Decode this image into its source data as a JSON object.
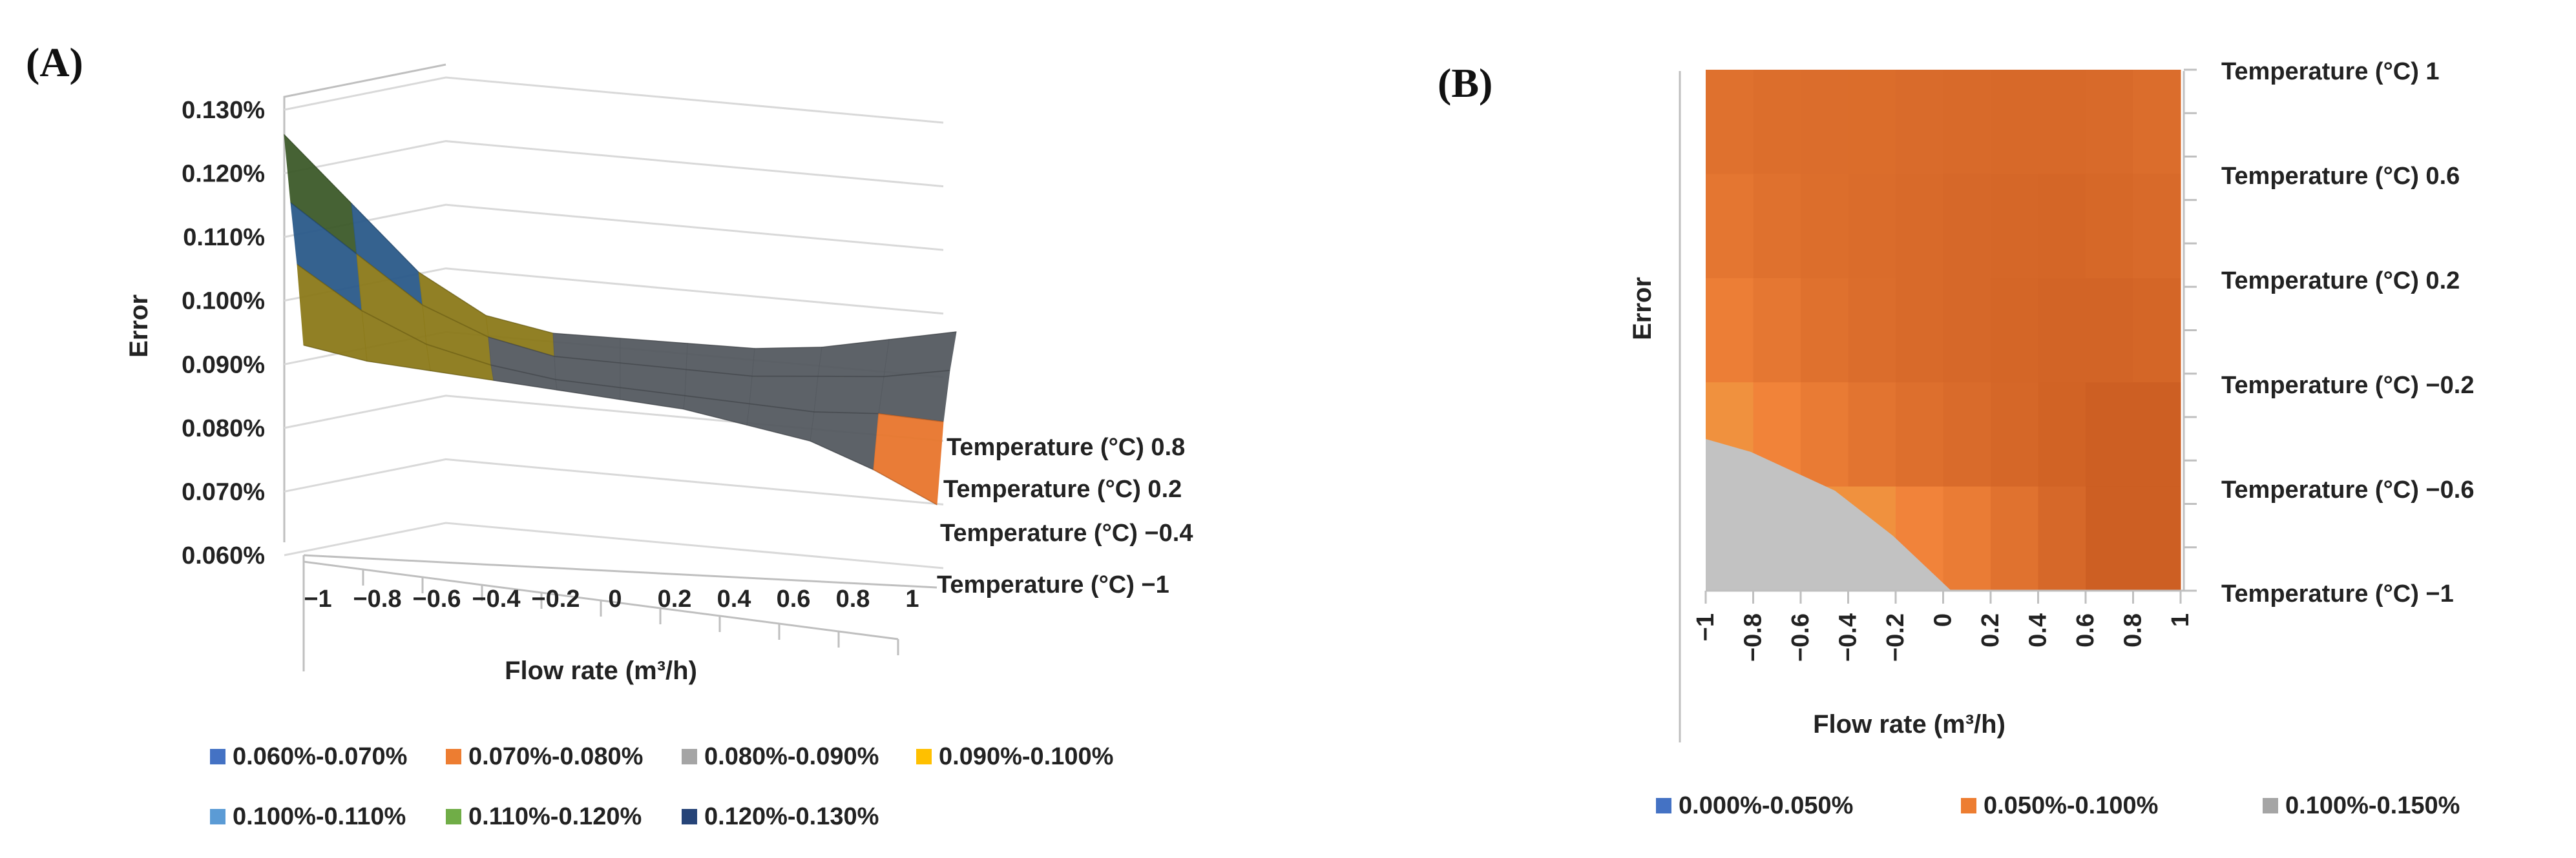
{
  "panel_a": {
    "label": "(A)",
    "ylabel": "Error",
    "xlabel": "Flow rate (m³/h)",
    "yticks": [
      "0.060%",
      "0.070%",
      "0.080%",
      "0.090%",
      "0.100%",
      "0.110%",
      "0.120%",
      "0.130%"
    ],
    "xticks": [
      "−1",
      "−0.8",
      "−0.6",
      "−0.4",
      "−0.2",
      "0",
      "0.2",
      "0.4",
      "0.6",
      "0.8",
      "1"
    ],
    "depth_ticks": [
      "Temperature (°C) 0.8",
      "Temperature (°C) 0.2",
      "Temperature (°C) −0.4",
      "Temperature (°C) −1"
    ],
    "legend": [
      {
        "label": "0.060%-0.070%",
        "color": "#4472c4"
      },
      {
        "label": "0.070%-0.080%",
        "color": "#ed7d31"
      },
      {
        "label": "0.080%-0.090%",
        "color": "#a5a5a5"
      },
      {
        "label": "0.090%-0.100%",
        "color": "#ffc000"
      },
      {
        "label": "0.100%-0.110%",
        "color": "#5b9bd5"
      },
      {
        "label": "0.110%-0.120%",
        "color": "#70ad47"
      },
      {
        "label": "0.120%-0.130%",
        "color": "#264478"
      }
    ]
  },
  "panel_b": {
    "label": "(B)",
    "ylabel": "Error",
    "xlabel": "Flow rate (m³/h)",
    "xticks": [
      "−1",
      "−0.8",
      "−0.6",
      "−0.4",
      "−0.2",
      "0",
      "0.2",
      "0.4",
      "0.6",
      "0.8",
      "1"
    ],
    "right_ticks": [
      "Temperature (°C) 1",
      "Temperature (°C) 0.6",
      "Temperature (°C) 0.2",
      "Temperature (°C) −0.2",
      "Temperature (°C) −0.6",
      "Temperature (°C) −1"
    ],
    "legend": [
      {
        "label": "0.000%-0.050%",
        "color": "#4472c4"
      },
      {
        "label": "0.050%-0.100%",
        "color": "#ed7d31"
      },
      {
        "label": "0.100%-0.150%",
        "color": "#a5a5a5"
      }
    ]
  },
  "chart_data": [
    {
      "type": "surface-3d",
      "title": "",
      "xlabel": "Flow rate (m³/h)",
      "ylabel": "Error",
      "zlabel": "Temperature (°C)",
      "x": [
        -1,
        -0.8,
        -0.6,
        -0.4,
        -0.2,
        0,
        0.2,
        0.4,
        0.6,
        0.8,
        1
      ],
      "ylim": [
        0.06,
        0.13
      ],
      "series": [
        {
          "name": "Temperature (°C) 0.8",
          "values": [
            0.121,
            0.11,
            0.099,
            0.092,
            0.089,
            0.088,
            0.087,
            0.086,
            0.086,
            0.087,
            0.088
          ]
        },
        {
          "name": "Temperature (°C) 0.2",
          "values": [
            0.112,
            0.104,
            0.096,
            0.091,
            0.088,
            0.087,
            0.086,
            0.085,
            0.085,
            0.085,
            0.086
          ]
        },
        {
          "name": "Temperature (°C) −0.4",
          "values": [
            0.104,
            0.097,
            0.092,
            0.089,
            0.087,
            0.086,
            0.085,
            0.084,
            0.083,
            0.083,
            0.082
          ]
        },
        {
          "name": "Temperature (°C) −1",
          "values": [
            0.093,
            0.091,
            0.09,
            0.089,
            0.088,
            0.087,
            0.086,
            0.084,
            0.082,
            0.078,
            0.073
          ]
        }
      ],
      "legend_ranges": [
        "0.060%-0.070%",
        "0.070%-0.080%",
        "0.080%-0.090%",
        "0.090%-0.100%",
        "0.100%-0.110%",
        "0.110%-0.120%",
        "0.120%-0.130%"
      ]
    },
    {
      "type": "heatmap",
      "title": "",
      "xlabel": "Flow rate (m³/h)",
      "ylabel": "Error",
      "x": [
        -1,
        -0.8,
        -0.6,
        -0.4,
        -0.2,
        0,
        0.2,
        0.4,
        0.6,
        0.8,
        1
      ],
      "y": [
        1,
        0.6,
        0.2,
        -0.2,
        -0.6,
        -1
      ],
      "z": [
        [
          0.088,
          0.087,
          0.087,
          0.087,
          0.087,
          0.086,
          0.086,
          0.086,
          0.086,
          0.087,
          0.088
        ],
        [
          0.09,
          0.088,
          0.087,
          0.087,
          0.086,
          0.086,
          0.085,
          0.085,
          0.085,
          0.086,
          0.087
        ],
        [
          0.092,
          0.09,
          0.088,
          0.087,
          0.086,
          0.085,
          0.085,
          0.084,
          0.084,
          0.085,
          0.086
        ],
        [
          0.096,
          0.093,
          0.09,
          0.088,
          0.087,
          0.086,
          0.085,
          0.084,
          0.083,
          0.083,
          0.084
        ],
        [
          0.102,
          0.099,
          0.096,
          0.093,
          0.09,
          0.088,
          0.086,
          0.084,
          0.082,
          0.08,
          0.078
        ],
        [
          0.112,
          0.109,
          0.106,
          0.104,
          0.102,
          0.099,
          0.095,
          0.09,
          0.085,
          0.079,
          0.073
        ]
      ],
      "legend_ranges": [
        "0.000%-0.050%",
        "0.050%-0.100%",
        "0.100%-0.150%"
      ]
    }
  ]
}
